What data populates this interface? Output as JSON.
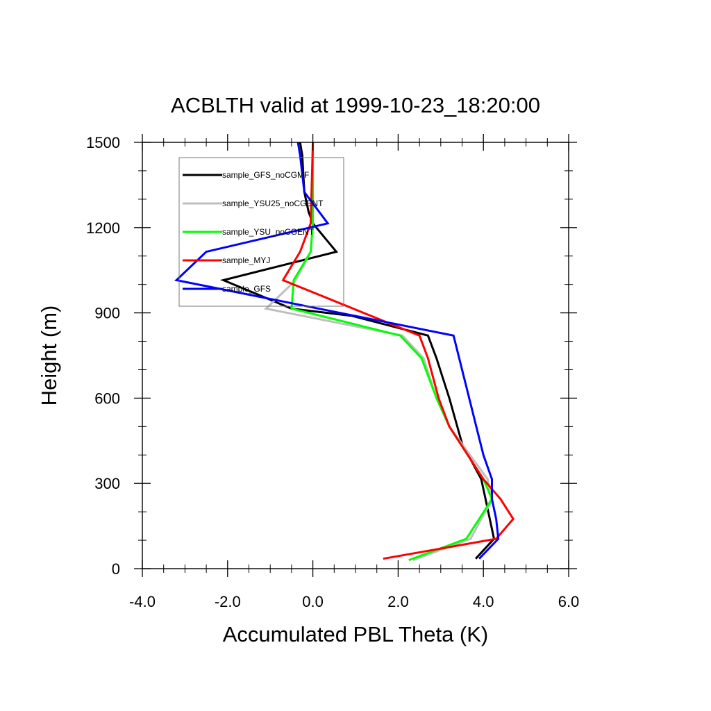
{
  "chart_data": {
    "type": "line",
    "title": "ACBLTH valid at 1999-10-23_18:20:00",
    "xlabel": "Accumulated PBL Theta (K)",
    "ylabel": "Height (m)",
    "xlim": [
      -4.0,
      6.0
    ],
    "ylim": [
      0,
      1500
    ],
    "x_ticks": [
      -4.0,
      -2.0,
      0.0,
      2.0,
      4.0,
      6.0
    ],
    "x_tick_labels": [
      "-4.0",
      "-2.0",
      "0.0",
      "2.0",
      "4.0",
      "6.0"
    ],
    "y_ticks": [
      0,
      300,
      600,
      900,
      1200,
      1500
    ],
    "y_tick_labels": [
      "0",
      "300",
      "600",
      "900",
      "1200",
      "1500"
    ],
    "grid": false,
    "legend_position": "top-left",
    "series": [
      {
        "name": "sample_GFS_noCGMF",
        "color": "#000000",
        "points": [
          [
            3.82,
            35
          ],
          [
            4.25,
            105
          ],
          [
            4.15,
            175
          ],
          [
            4.05,
            245
          ],
          [
            3.95,
            315
          ],
          [
            3.5,
            440
          ],
          [
            3.2,
            600
          ],
          [
            2.9,
            740
          ],
          [
            2.7,
            820
          ],
          [
            0.9,
            890
          ],
          [
            -0.5,
            915
          ],
          [
            -2.1,
            1015
          ],
          [
            0.55,
            1115
          ],
          [
            0.0,
            1215
          ],
          [
            -0.1,
            1255
          ],
          [
            -0.2,
            1325
          ],
          [
            -0.25,
            1455
          ],
          [
            -0.3,
            1500
          ]
        ]
      },
      {
        "name": "sample_YSU25_noCGENT",
        "color": "#bfbfbf",
        "points": [
          [
            2.35,
            30
          ],
          [
            3.7,
            105
          ],
          [
            3.95,
            175
          ],
          [
            4.2,
            240
          ],
          [
            4.1,
            315
          ],
          [
            3.2,
            500
          ],
          [
            2.9,
            600
          ],
          [
            2.6,
            740
          ],
          [
            2.1,
            820
          ],
          [
            -1.1,
            915
          ],
          [
            -0.4,
            1015
          ],
          [
            -0.05,
            1115
          ],
          [
            0.0,
            1215
          ],
          [
            0.0,
            1500
          ]
        ]
      },
      {
        "name": "sample_YSU_noCGENT",
        "color": "#00ff00",
        "points": [
          [
            2.25,
            30
          ],
          [
            3.6,
            105
          ],
          [
            3.9,
            175
          ],
          [
            4.2,
            245
          ],
          [
            4.0,
            315
          ],
          [
            3.2,
            500
          ],
          [
            2.9,
            600
          ],
          [
            2.55,
            740
          ],
          [
            2.05,
            820
          ],
          [
            -0.5,
            915
          ],
          [
            -0.45,
            1015
          ],
          [
            -0.05,
            1115
          ],
          [
            0.0,
            1215
          ],
          [
            0.0,
            1500
          ]
        ]
      },
      {
        "name": "sample_MYJ",
        "color": "#ff0000",
        "points": [
          [
            1.65,
            35
          ],
          [
            4.3,
            105
          ],
          [
            4.7,
            175
          ],
          [
            4.4,
            245
          ],
          [
            4.0,
            315
          ],
          [
            3.2,
            500
          ],
          [
            2.95,
            600
          ],
          [
            2.7,
            740
          ],
          [
            2.5,
            820
          ],
          [
            -0.7,
            1015
          ],
          [
            -0.3,
            1115
          ],
          [
            -0.05,
            1215
          ],
          [
            0.0,
            1500
          ]
        ]
      },
      {
        "name": "sample_GFS",
        "color": "#0000ff",
        "points": [
          [
            3.9,
            35
          ],
          [
            4.35,
            105
          ],
          [
            4.3,
            175
          ],
          [
            4.2,
            245
          ],
          [
            4.2,
            315
          ],
          [
            4.0,
            400
          ],
          [
            3.3,
            820
          ],
          [
            -3.2,
            1015
          ],
          [
            -2.5,
            1115
          ],
          [
            0.35,
            1215
          ],
          [
            -0.2,
            1325
          ],
          [
            -0.3,
            1455
          ],
          [
            -0.35,
            1500
          ]
        ]
      }
    ]
  }
}
